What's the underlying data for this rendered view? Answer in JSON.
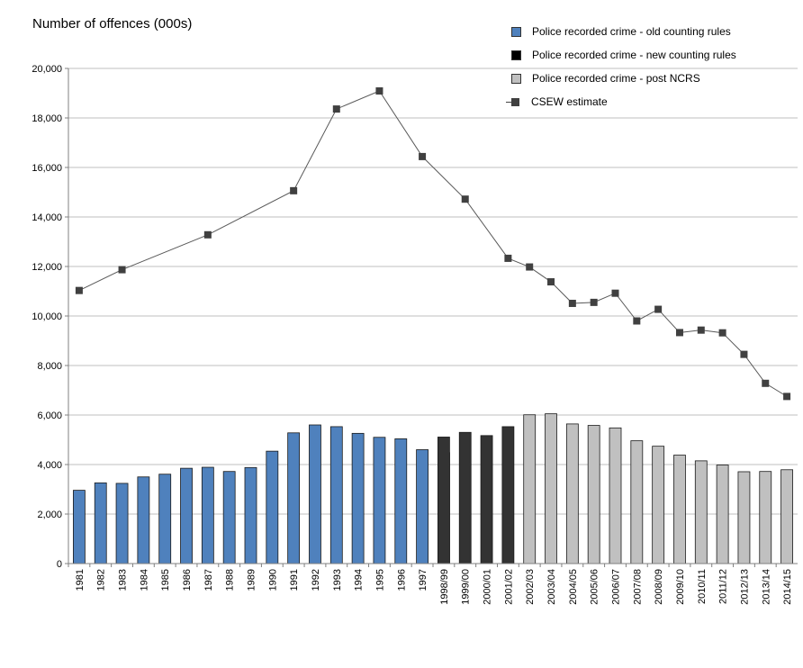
{
  "chart_data": {
    "type": "bar",
    "ylabel": "Number of offences (000s)",
    "ylim": [
      0,
      20000
    ],
    "yticks": [
      0,
      2000,
      4000,
      6000,
      8000,
      10000,
      12000,
      14000,
      16000,
      18000,
      20000
    ],
    "ytick_labels": [
      "0",
      "2,000",
      "4,000",
      "6,000",
      "8,000",
      "10,000",
      "12,000",
      "14,000",
      "16,000",
      "18,000",
      "20,000"
    ],
    "grid": true,
    "legend_position": "top-right",
    "categories": [
      "1981",
      "1982",
      "1983",
      "1984",
      "1985",
      "1986",
      "1987",
      "1988",
      "1989",
      "1990",
      "1991",
      "1992",
      "1993",
      "1994",
      "1995",
      "1996",
      "1997",
      "1998/99",
      "1999/00",
      "2000/01",
      "2001/02",
      "2002/03",
      "2003/04",
      "2004/05",
      "2005/06",
      "2006/07",
      "2007/08",
      "2008/09",
      "2009/10",
      "2010/11",
      "2011/12",
      "2012/13",
      "2013/14",
      "2014/15"
    ],
    "bar_series": [
      {
        "name": "Police recorded crime - old counting rules",
        "color": "#4f81bd",
        "start": 0,
        "values": [
          2960,
          3260,
          3240,
          3500,
          3610,
          3850,
          3890,
          3720,
          3880,
          4540,
          5280,
          5600,
          5530,
          5260,
          5100,
          5040,
          4600,
          4480
        ]
      },
      {
        "name": "Police recorded crime - new counting rules",
        "color": "#333333",
        "start": 17,
        "values": [
          5110,
          5300,
          5170,
          5530
        ]
      },
      {
        "name": "Police recorded crime - post NCRS",
        "color": "#c0c0c0",
        "start": 21,
        "values": [
          6010,
          6050,
          5640,
          5580,
          5480,
          4960,
          4740,
          4380,
          4150,
          3980,
          3710,
          3720,
          3790
        ]
      }
    ],
    "line_series": {
      "name": "CSEW  estimate",
      "color": "#404040",
      "points": [
        {
          "i": 0,
          "y": 11030
        },
        {
          "i": 2,
          "y": 11870
        },
        {
          "i": 6,
          "y": 13280
        },
        {
          "i": 10,
          "y": 15060
        },
        {
          "i": 12,
          "y": 18360
        },
        {
          "i": 14,
          "y": 19090
        },
        {
          "i": 16,
          "y": 16440
        },
        {
          "i": 18,
          "y": 14720
        },
        {
          "i": 20,
          "y": 12330
        },
        {
          "i": 21,
          "y": 11980
        },
        {
          "i": 22,
          "y": 11380
        },
        {
          "i": 23,
          "y": 10510
        },
        {
          "i": 24,
          "y": 10550
        },
        {
          "i": 25,
          "y": 10920
        },
        {
          "i": 26,
          "y": 9800
        },
        {
          "i": 27,
          "y": 10270
        },
        {
          "i": 28,
          "y": 9330
        },
        {
          "i": 29,
          "y": 9430
        },
        {
          "i": 30,
          "y": 9320
        },
        {
          "i": 31,
          "y": 8450
        },
        {
          "i": 32,
          "y": 7280
        },
        {
          "i": 33,
          "y": 6750
        }
      ]
    }
  }
}
